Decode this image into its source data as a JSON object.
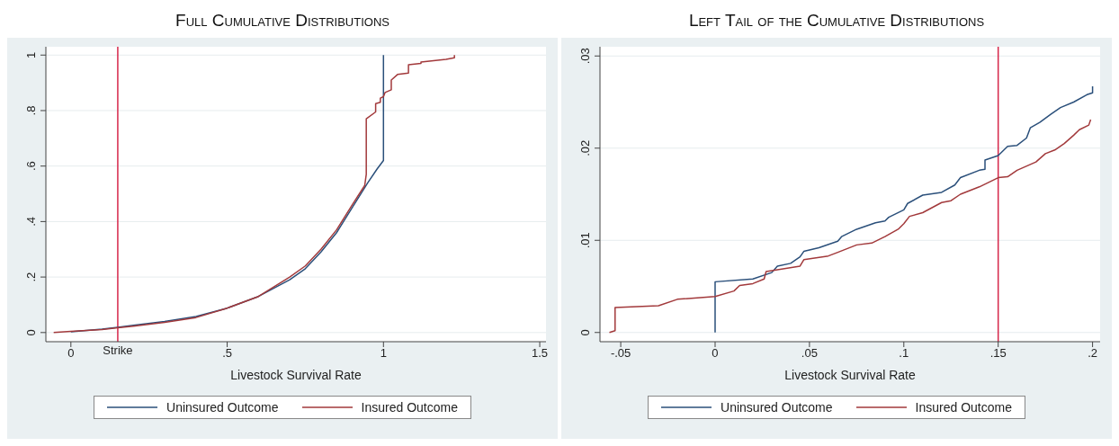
{
  "chart_data": [
    {
      "type": "line",
      "title": "Full Cumulative Distributions",
      "xlabel": "Livestock Survival Rate",
      "xlim": [
        -0.08,
        1.52
      ],
      "ylim": [
        -0.033,
        1.03
      ],
      "xticks": [
        {
          "value": 0,
          "label": "0"
        },
        {
          "value": 0.5,
          "label": ".5"
        },
        1,
        1.5
      ],
      "yticks": [
        {
          "value": 0,
          "label": "0"
        },
        {
          "value": 0.2,
          "label": ".2"
        },
        {
          "value": 0.4,
          "label": ".4"
        },
        {
          "value": 0.6,
          "label": ".6"
        },
        {
          "value": 0.8,
          "label": ".8"
        },
        1
      ],
      "grid": "y",
      "legend": "bottom",
      "line_style": "solid",
      "marker": "none",
      "series": [
        {
          "name": "Uninsured Outcome",
          "color": "#2a4f7a",
          "x": [
            0,
            0.1,
            0.15,
            0.2,
            0.3,
            0.4,
            0.5,
            0.6,
            0.7,
            0.75,
            0.8,
            0.85,
            0.9,
            0.95,
            0.98,
            1.0,
            1.0
          ],
          "values": [
            0.003,
            0.012,
            0.019,
            0.026,
            0.04,
            0.058,
            0.088,
            0.13,
            0.19,
            0.23,
            0.29,
            0.36,
            0.45,
            0.54,
            0.59,
            0.62,
            1.0
          ]
        },
        {
          "name": "Insured Outcome",
          "color": "#a2393b",
          "x": [
            -0.055,
            0,
            0.1,
            0.15,
            0.2,
            0.3,
            0.4,
            0.5,
            0.6,
            0.7,
            0.75,
            0.8,
            0.85,
            0.9,
            0.94,
            0.945,
            0.945,
            0.975,
            0.975,
            0.99,
            0.99,
            1.0,
            1.005,
            1.025,
            1.025,
            1.045,
            1.08,
            1.08,
            1.12,
            1.12,
            1.2,
            1.227,
            1.227
          ],
          "values": [
            0,
            0.004,
            0.011,
            0.017,
            0.023,
            0.037,
            0.054,
            0.088,
            0.13,
            0.2,
            0.24,
            0.3,
            0.37,
            0.46,
            0.53,
            0.57,
            0.77,
            0.795,
            0.825,
            0.83,
            0.845,
            0.85,
            0.865,
            0.875,
            0.91,
            0.93,
            0.935,
            0.965,
            0.97,
            0.975,
            0.985,
            0.99,
            1.0
          ]
        }
      ],
      "ref_lines": [
        {
          "axis": "x",
          "value": 0.15,
          "label": "Strike",
          "color": "#d6264a"
        }
      ]
    },
    {
      "type": "line",
      "title": "Left Tail of the Cumulative Distributions",
      "xlabel": "Livestock Survival Rate",
      "xlim": [
        -0.061,
        0.204
      ],
      "ylim": [
        -0.001,
        0.031
      ],
      "xticks": [
        {
          "value": -0.05,
          "label": "-.05"
        },
        {
          "value": 0,
          "label": "0"
        },
        {
          "value": 0.05,
          "label": ".05"
        },
        {
          "value": 0.1,
          "label": ".1"
        },
        {
          "value": 0.15,
          "label": ".15"
        },
        {
          "value": 0.2,
          "label": ".2"
        }
      ],
      "yticks": [
        {
          "value": 0,
          "label": "0"
        },
        {
          "value": 0.01,
          "label": ".01"
        },
        {
          "value": 0.02,
          "label": ".02"
        },
        {
          "value": 0.03,
          "label": ".03"
        }
      ],
      "grid": "y",
      "legend": "bottom",
      "line_style": "solid",
      "marker": "none",
      "series": [
        {
          "name": "Uninsured Outcome",
          "color": "#2a4f7a",
          "x": [
            0,
            0,
            0.02,
            0.03,
            0.033,
            0.04,
            0.045,
            0.047,
            0.055,
            0.065,
            0.067,
            0.075,
            0.085,
            0.09,
            0.092,
            0.1,
            0.102,
            0.11,
            0.12,
            0.127,
            0.13,
            0.14,
            0.143,
            0.143,
            0.15,
            0.155,
            0.16,
            0.165,
            0.167,
            0.172,
            0.178,
            0.183,
            0.19,
            0.197,
            0.2,
            0.2
          ],
          "values": [
            0,
            0.0055,
            0.0058,
            0.0065,
            0.0072,
            0.0075,
            0.0082,
            0.0088,
            0.0092,
            0.0099,
            0.0104,
            0.0112,
            0.0119,
            0.0121,
            0.0125,
            0.0133,
            0.014,
            0.0149,
            0.0152,
            0.016,
            0.0168,
            0.0176,
            0.0177,
            0.0187,
            0.0192,
            0.0202,
            0.0203,
            0.0211,
            0.0222,
            0.0228,
            0.0237,
            0.0244,
            0.025,
            0.0258,
            0.026,
            0.0267
          ]
        },
        {
          "name": "Insured Outcome",
          "color": "#a2393b",
          "x": [
            -0.056,
            -0.053,
            -0.053,
            -0.03,
            -0.02,
            0,
            0.01,
            0.013,
            0.02,
            0.026,
            0.027,
            0.045,
            0.047,
            0.06,
            0.065,
            0.075,
            0.083,
            0.09,
            0.097,
            0.1,
            0.103,
            0.11,
            0.12,
            0.125,
            0.13,
            0.14,
            0.15,
            0.155,
            0.16,
            0.17,
            0.175,
            0.18,
            0.185,
            0.19,
            0.193,
            0.198,
            0.199
          ],
          "values": [
            0,
            0.0002,
            0.0027,
            0.0029,
            0.0036,
            0.0039,
            0.0045,
            0.0051,
            0.0053,
            0.0058,
            0.0066,
            0.0072,
            0.0079,
            0.0083,
            0.0087,
            0.0095,
            0.0097,
            0.0104,
            0.0112,
            0.0118,
            0.0126,
            0.013,
            0.0141,
            0.0143,
            0.015,
            0.0158,
            0.0168,
            0.0169,
            0.0176,
            0.0185,
            0.0194,
            0.0198,
            0.0205,
            0.0214,
            0.022,
            0.0225,
            0.0231
          ]
        }
      ],
      "ref_lines": [
        {
          "axis": "x",
          "value": 0.15,
          "color": "#d6264a"
        }
      ]
    }
  ]
}
